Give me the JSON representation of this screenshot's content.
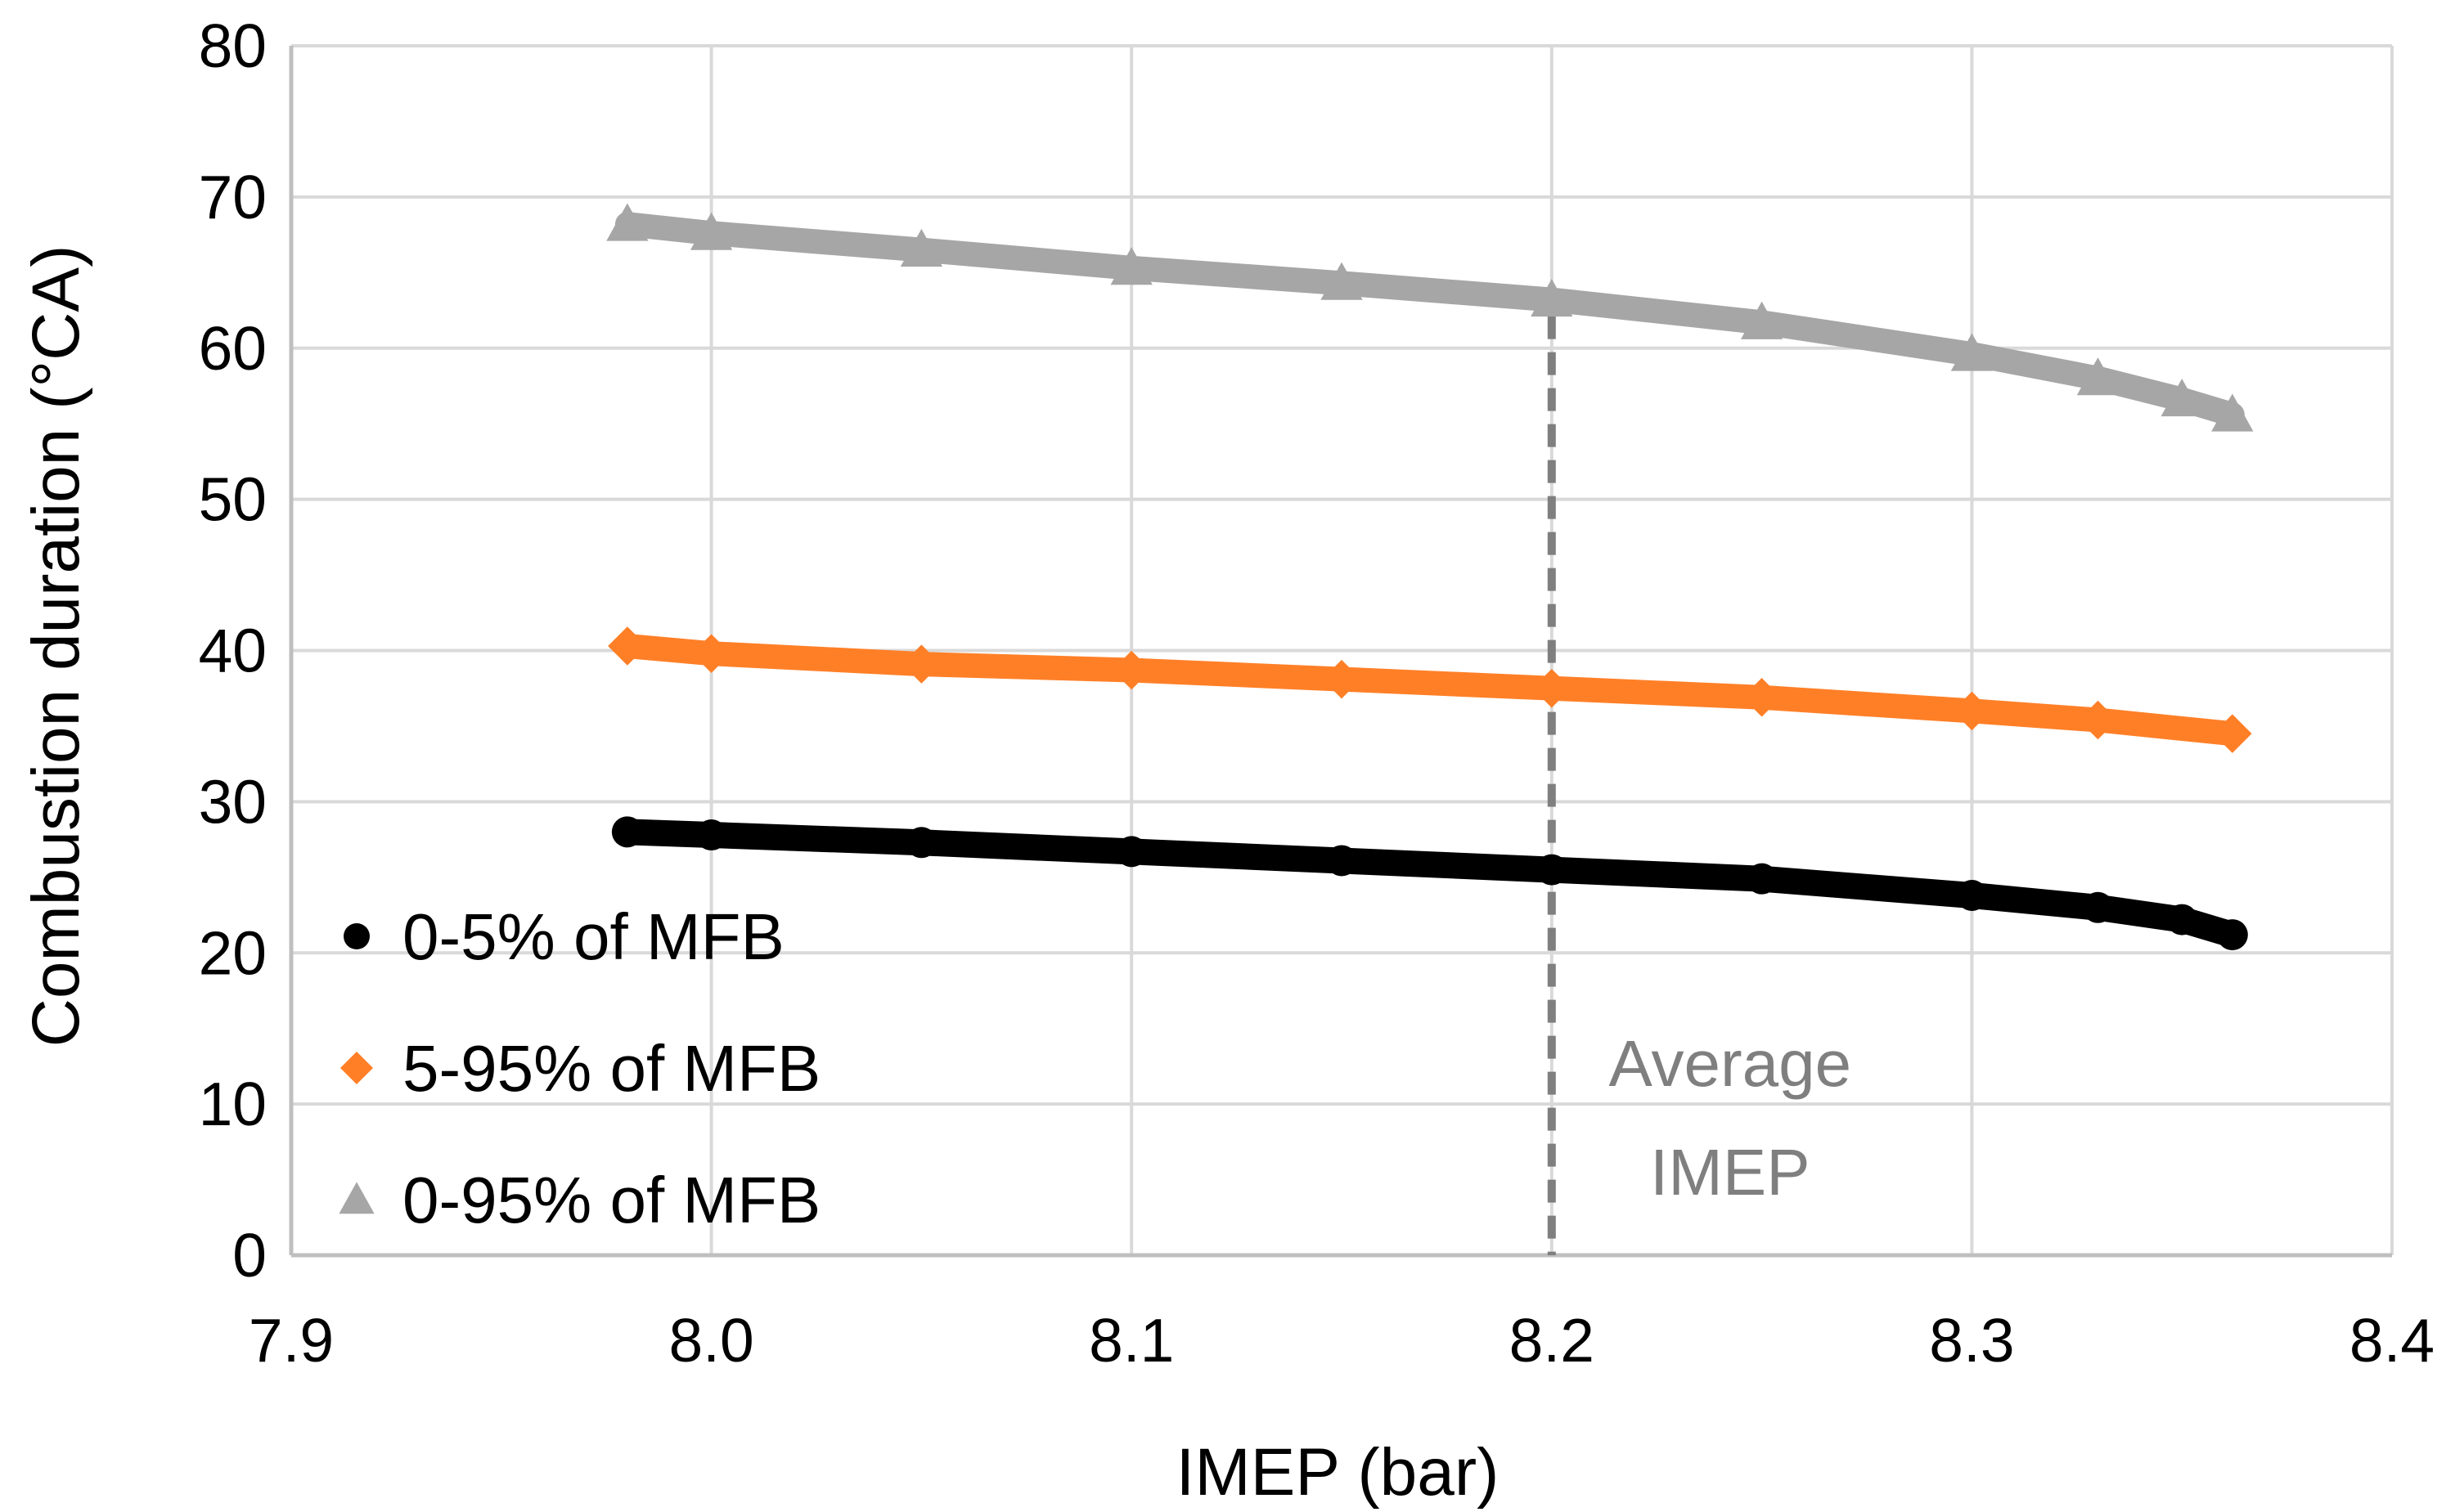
{
  "chart_data": {
    "type": "scatter",
    "title": "",
    "xlabel": "IMEP (bar)",
    "ylabel": "Combustion duration (°CA)",
    "xlim": [
      7.9,
      8.4
    ],
    "ylim": [
      0,
      80
    ],
    "xticks": [
      7.9,
      8.0,
      8.1,
      8.2,
      8.3,
      8.4
    ],
    "xtick_labels": [
      "7.9",
      "8.0",
      "8.1",
      "8.2",
      "8.3",
      "8.4"
    ],
    "yticks": [
      0,
      10,
      20,
      30,
      40,
      50,
      60,
      70,
      80
    ],
    "ytick_labels": [
      "0",
      "10",
      "20",
      "30",
      "40",
      "50",
      "60",
      "70",
      "80"
    ],
    "grid": true,
    "legend_position": "bottom-left",
    "colors": {
      "grid": "#d9d9d9",
      "axis": "#bfbfbf",
      "annotation": "#7f7f7f"
    },
    "series": [
      {
        "name": "0-5% of MFB",
        "marker": "circle",
        "color": "#000000",
        "x": [
          7.98,
          8.0,
          8.05,
          8.1,
          8.15,
          8.2,
          8.25,
          8.3,
          8.33,
          8.35,
          8.362
        ],
        "y": [
          28.0,
          27.8,
          27.3,
          26.7,
          26.1,
          25.5,
          24.9,
          23.8,
          23.0,
          22.2,
          21.2
        ]
      },
      {
        "name": "5-95% of MFB",
        "marker": "diamond",
        "color": "#ff7f27",
        "x": [
          7.98,
          8.0,
          8.05,
          8.1,
          8.15,
          8.2,
          8.25,
          8.3,
          8.33,
          8.362
        ],
        "y": [
          40.3,
          39.8,
          39.1,
          38.7,
          38.1,
          37.5,
          36.9,
          36.0,
          35.4,
          34.5
        ]
      },
      {
        "name": "0-95% of MFB",
        "marker": "triangle",
        "color": "#a6a6a6",
        "x": [
          7.98,
          8.0,
          8.05,
          8.1,
          8.15,
          8.2,
          8.25,
          8.3,
          8.33,
          8.35,
          8.362
        ],
        "y": [
          68.2,
          67.6,
          66.5,
          65.3,
          64.3,
          63.2,
          61.7,
          59.6,
          58.0,
          56.6,
          55.6
        ]
      }
    ],
    "annotations": [
      {
        "type": "vline",
        "x": 8.2,
        "style": "dashed",
        "label_lines": [
          "Average",
          "IMEP"
        ]
      }
    ]
  }
}
